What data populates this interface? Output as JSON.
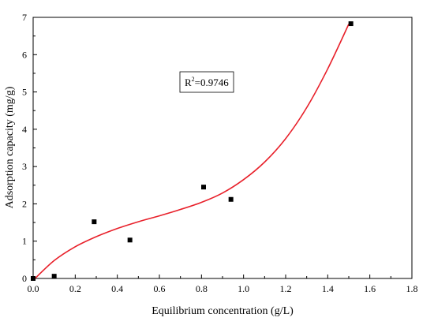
{
  "chart_data": {
    "type": "scatter",
    "title": "",
    "xlabel": "Equilibrium concentration (g/L)",
    "ylabel": "Adsorption capacity (mg/g)",
    "xlim": [
      0.0,
      1.8
    ],
    "ylim": [
      0,
      7
    ],
    "xticks": [
      "0.0",
      "0.2",
      "0.4",
      "0.6",
      "0.8",
      "1.0",
      "1.2",
      "1.4",
      "1.6",
      "1.8"
    ],
    "yticks": [
      "0",
      "1",
      "2",
      "3",
      "4",
      "5",
      "6",
      "7"
    ],
    "grid": false,
    "points": [
      {
        "x": 0.0,
        "y": 0.0
      },
      {
        "x": 0.1,
        "y": 0.06
      },
      {
        "x": 0.29,
        "y": 1.52
      },
      {
        "x": 0.46,
        "y": 1.03
      },
      {
        "x": 0.81,
        "y": 2.45
      },
      {
        "x": 0.94,
        "y": 2.12
      },
      {
        "x": 1.51,
        "y": 6.83
      }
    ],
    "fit_curve": {
      "color": "#e8202a",
      "x": [
        0.0,
        0.1,
        0.2,
        0.3,
        0.4,
        0.5,
        0.6,
        0.7,
        0.8,
        0.9,
        1.0,
        1.1,
        1.2,
        1.3,
        1.4,
        1.5
      ],
      "y": [
        -0.05,
        0.48,
        0.85,
        1.12,
        1.34,
        1.52,
        1.68,
        1.85,
        2.04,
        2.29,
        2.65,
        3.12,
        3.75,
        4.58,
        5.62,
        6.82
      ]
    },
    "annotation": {
      "r2_label": "R",
      "r2_sup": "2",
      "r2_value": "=0.9746"
    },
    "marker_color": "#000000"
  }
}
